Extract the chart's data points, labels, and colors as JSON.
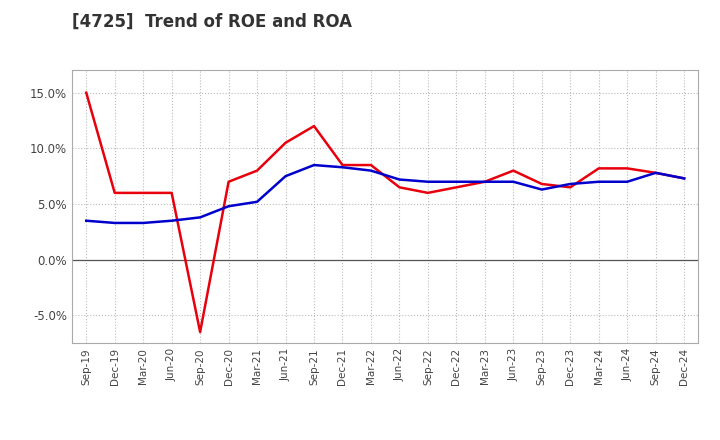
{
  "title": "[4725]  Trend of ROE and ROA",
  "x_labels": [
    "Sep-19",
    "Dec-19",
    "Mar-20",
    "Jun-20",
    "Sep-20",
    "Dec-20",
    "Mar-21",
    "Jun-21",
    "Sep-21",
    "Dec-21",
    "Mar-22",
    "Jun-22",
    "Sep-22",
    "Dec-22",
    "Mar-23",
    "Jun-23",
    "Sep-23",
    "Dec-23",
    "Mar-24",
    "Jun-24",
    "Sep-24",
    "Dec-24"
  ],
  "roe": [
    15.0,
    6.0,
    6.0,
    6.0,
    -6.5,
    7.0,
    8.0,
    10.5,
    12.0,
    8.5,
    8.5,
    6.5,
    6.0,
    6.5,
    7.0,
    8.0,
    6.8,
    6.5,
    8.2,
    8.2,
    7.8,
    7.3
  ],
  "roa": [
    3.5,
    3.3,
    3.3,
    3.5,
    3.8,
    4.8,
    5.2,
    7.5,
    8.5,
    8.3,
    8.0,
    7.2,
    7.0,
    7.0,
    7.0,
    7.0,
    6.3,
    6.8,
    7.0,
    7.0,
    7.8,
    7.3
  ],
  "roe_color": "#e8000d",
  "roa_color": "#0000cc",
  "ylim": [
    -7.5,
    17.0
  ],
  "yticks": [
    -5.0,
    0.0,
    5.0,
    10.0,
    15.0
  ],
  "background_color": "#ffffff",
  "plot_bg_color": "#ffffff",
  "grid_color": "#bbbbbb",
  "zero_line_color": "#555555",
  "title_color": "#333333",
  "tick_color": "#444444"
}
